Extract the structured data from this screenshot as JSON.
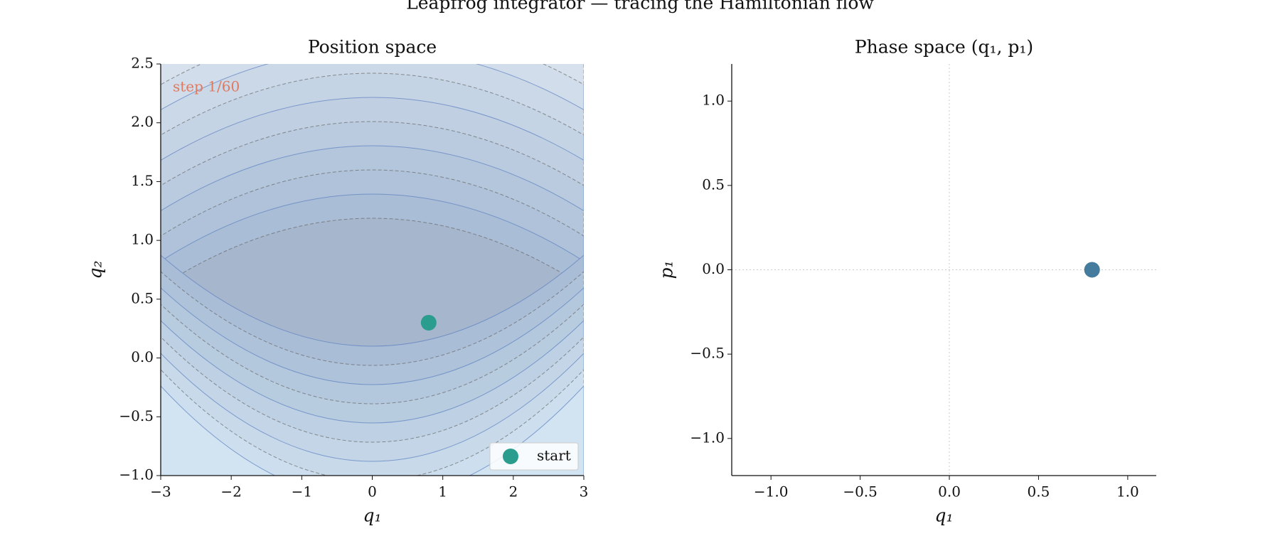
{
  "title": "Leapfrog integrator — tracing the Hamiltonian flow",
  "chart_data": [
    {
      "type": "scatter",
      "title": "Position space",
      "x_label": "q₁",
      "y_label": "q₂",
      "annotation": "step 1/60",
      "annotation_color": "#e07a5f",
      "background": "contour",
      "legend": "lower right",
      "series": [
        {
          "name": "start",
          "color": "#2a9d8f",
          "x": [
            0.8
          ],
          "values": [
            0.3
          ]
        }
      ],
      "xlim": [
        -3,
        3
      ],
      "xticks": [
        {
          "value": -3,
          "label": "−3"
        },
        {
          "value": -2,
          "label": "−2"
        },
        {
          "value": -1,
          "label": "−1"
        },
        0,
        1,
        2,
        3
      ],
      "ylim": [
        -1,
        2.5
      ],
      "yticks": [
        {
          "value": -1,
          "label": "−1.0"
        },
        {
          "value": -0.5,
          "label": "−0.5"
        },
        {
          "value": 0,
          "label": "0.0"
        },
        0.5,
        {
          "value": 1,
          "label": "1.0"
        },
        1.5,
        {
          "value": 2,
          "label": "2.0"
        },
        2.5
      ]
    },
    {
      "type": "scatter",
      "title": "Phase space  (q₁, p₁)",
      "x_label": "q₁",
      "y_label": "p₁",
      "zero_lines": true,
      "series": [
        {
          "color": "#457b9d",
          "x": [
            0.8
          ],
          "values": [
            0.0
          ]
        }
      ],
      "xlim": [
        -1.22,
        1.16
      ],
      "xticks": [
        {
          "value": -1,
          "label": "−1.0"
        },
        {
          "value": -0.5,
          "label": "−0.5"
        },
        {
          "value": 0,
          "label": "0.0"
        },
        0.5,
        {
          "value": 1,
          "label": "1.0"
        }
      ],
      "ylim": [
        -1.22,
        1.22
      ],
      "yticks": [
        {
          "value": -1,
          "label": "−1.0"
        },
        {
          "value": -0.5,
          "label": "−0.5"
        },
        {
          "value": 0,
          "label": "0.0"
        },
        0.5,
        {
          "value": 1,
          "label": "1.0"
        }
      ]
    }
  ]
}
